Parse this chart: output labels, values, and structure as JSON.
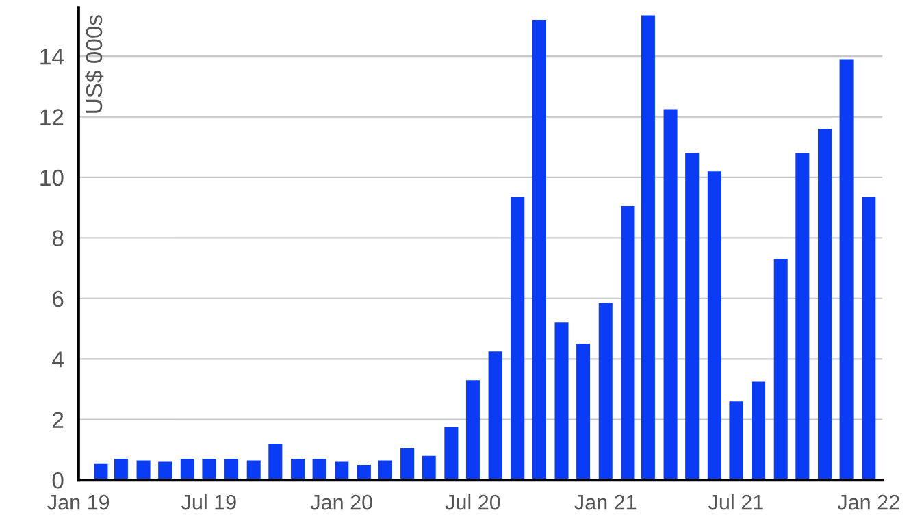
{
  "chart_data": {
    "type": "bar",
    "ylabel": "US$ 000s",
    "x": [
      "2019-02",
      "2019-03",
      "2019-04",
      "2019-05",
      "2019-06",
      "2019-07",
      "2019-08",
      "2019-09",
      "2019-10",
      "2019-11",
      "2019-12",
      "2020-01",
      "2020-02",
      "2020-03",
      "2020-04",
      "2020-05",
      "2020-06",
      "2020-07",
      "2020-08",
      "2020-09",
      "2020-10",
      "2020-11",
      "2020-12",
      "2021-01",
      "2021-02",
      "2021-03",
      "2021-04",
      "2021-05",
      "2021-06",
      "2021-07",
      "2021-08",
      "2021-09",
      "2021-10",
      "2021-11",
      "2021-12",
      "2022-01"
    ],
    "values": [
      0.55,
      0.7,
      0.65,
      0.6,
      0.7,
      0.7,
      0.7,
      0.65,
      1.2,
      0.7,
      0.7,
      0.6,
      0.5,
      0.65,
      1.05,
      0.8,
      1.75,
      3.3,
      4.25,
      9.35,
      15.2,
      5.2,
      4.5,
      5.85,
      9.05,
      15.35,
      12.25,
      10.8,
      10.2,
      2.6,
      3.25,
      7.3,
      10.8,
      11.6,
      13.9,
      9.35
    ],
    "color": "#0a3cf5",
    "xlim": [
      "2019-01",
      "2022-01-20"
    ],
    "xticks": [
      {
        "value": "2019-01",
        "label": "Jan 19"
      },
      {
        "value": "2019-07",
        "label": "Jul 19"
      },
      {
        "value": "2020-01",
        "label": "Jan 20"
      },
      {
        "value": "2020-07",
        "label": "Jul 20"
      },
      {
        "value": "2021-01",
        "label": "Jan 21"
      },
      {
        "value": "2021-07",
        "label": "Jul 21"
      },
      {
        "value": "2022-01",
        "label": "Jan 22"
      }
    ],
    "ylim": [
      0,
      15.6
    ],
    "yticks": [
      0,
      2,
      4,
      6,
      8,
      10,
      12,
      14
    ],
    "grid": "y"
  }
}
